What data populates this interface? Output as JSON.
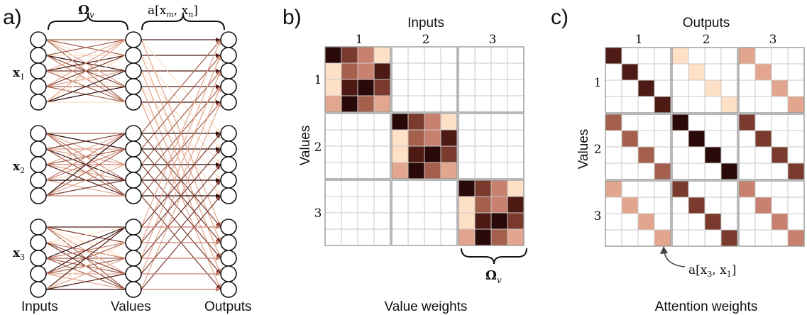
{
  "panel_a": {
    "letter": "a)",
    "label_inputs": "Inputs",
    "label_values": "Values",
    "label_outputs": "Outputs",
    "brace_left_label": "Ω",
    "brace_left_sub": "v",
    "brace_right_label": "a[x",
    "brace_right_m": "m",
    "brace_right_sep": ", x",
    "brace_right_n": "n",
    "brace_right_close": "]",
    "x_labels": [
      {
        "base": "x",
        "sub": "1"
      },
      {
        "base": "x",
        "sub": "2"
      },
      {
        "base": "x",
        "sub": "3"
      }
    ]
  },
  "panel_b": {
    "letter": "b)",
    "top_title": "Inputs",
    "side_title": "Values",
    "bottom_title": "Value weights",
    "col_ticks": [
      "1",
      "2",
      "3"
    ],
    "row_ticks": [
      "1",
      "2",
      "3"
    ],
    "brace_label": "Ω",
    "brace_sub": "v"
  },
  "panel_c": {
    "letter": "c)",
    "top_title": "Outputs",
    "side_title": "Values",
    "bottom_title": "Attention weights",
    "col_ticks": [
      "1",
      "2",
      "3"
    ],
    "row_ticks": [
      "1",
      "2",
      "3"
    ],
    "annotation_base": "a[x",
    "annotation_sub1": "3",
    "annotation_sep": ", x",
    "annotation_sub2": "1",
    "annotation_close": "]"
  },
  "colors": {
    "c0": "#fde0c5",
    "c1": "#e2a58d",
    "c2": "#c9816f",
    "c3": "#a4604d",
    "c4": "#7a3a2e",
    "c5": "#4d1a14",
    "c6": "#2a0a08"
  },
  "value_weight_blocks": [
    [
      [
        6,
        4,
        2,
        0
      ],
      [
        0,
        3,
        2,
        5
      ],
      [
        0,
        5,
        6,
        4
      ],
      [
        1,
        6,
        3,
        1
      ]
    ],
    [
      [
        6,
        4,
        2,
        0
      ],
      [
        0,
        3,
        2,
        5
      ],
      [
        0,
        5,
        6,
        4
      ],
      [
        1,
        6,
        3,
        1
      ]
    ],
    [
      [
        6,
        4,
        2,
        0
      ],
      [
        0,
        3,
        2,
        5
      ],
      [
        0,
        5,
        6,
        4
      ],
      [
        1,
        6,
        3,
        1
      ]
    ]
  ],
  "attention_weights": [
    [
      5,
      0,
      1
    ],
    [
      3,
      6,
      4
    ],
    [
      1,
      4,
      2
    ]
  ]
}
